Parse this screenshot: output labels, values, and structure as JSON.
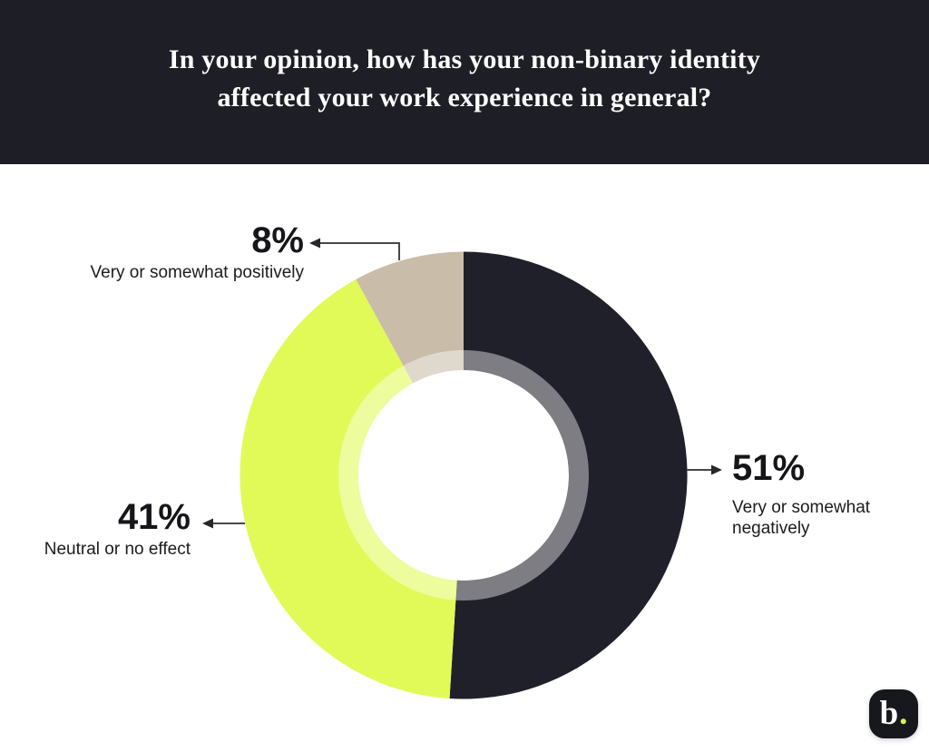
{
  "header": {
    "title_lines": [
      "In your opinion, how has your non-binary identity",
      "affected your work experience in general?"
    ],
    "bg_color": "#1e1e26",
    "text_color": "#ffffff"
  },
  "chart_data": {
    "type": "pie",
    "subtype": "donut",
    "title": "In your opinion, how has your non-binary identity affected your work experience in general?",
    "categories": [
      "Very or somewhat negatively",
      "Neutral or no effect",
      "Very or somewhat positively"
    ],
    "values": [
      51,
      41,
      8
    ],
    "value_labels": [
      "51%",
      "41%",
      "8%"
    ],
    "unit": "%",
    "colors": [
      "#20202a",
      "#e1fa57",
      "#c9bdaa"
    ],
    "start_angle_deg": 0,
    "direction": "clockwise",
    "donut_hole_color": "#ffffff",
    "inner_ring_overlay": "rgba(255,255,255,0.42)",
    "legend_position": "callout-labels"
  },
  "callouts": {
    "negatively": {
      "pct": "51%",
      "label": "Very or somewhat negatively"
    },
    "neutral": {
      "pct": "41%",
      "label": "Neutral or no effect"
    },
    "positively": {
      "pct": "8%",
      "label": "Very or somewhat positively"
    }
  },
  "arrow_color": "#47474b",
  "logo": {
    "letter": "b",
    "dot": ".",
    "dot_color": "#d9f05e",
    "bg_color": "#17171e"
  }
}
